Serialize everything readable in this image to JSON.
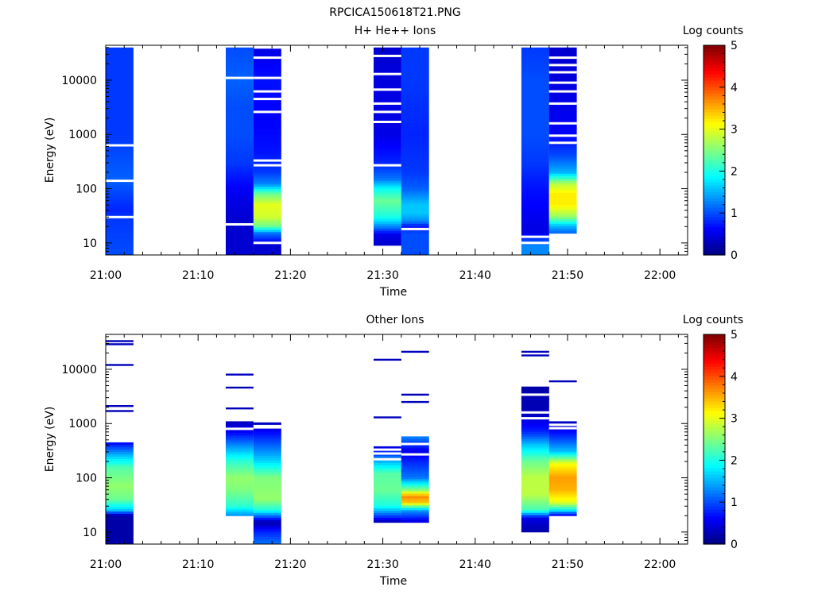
{
  "figure_title": "RPCICA150618T21.PNG",
  "colormap": [
    "#00007f",
    "#0000ff",
    "#007fff",
    "#00ffff",
    "#7fff7f",
    "#ffff00",
    "#ff7f00",
    "#ff0000",
    "#7f0000"
  ],
  "chart_data": [
    {
      "type": "heatmap",
      "title": "H+ He++ Ions",
      "xlabel": "Time",
      "ylabel": "Energy (eV)",
      "x_ticks": [
        "21:00",
        "21:10",
        "21:20",
        "21:30",
        "21:40",
        "21:50",
        "22:00"
      ],
      "y_ticks": [
        "10",
        "100",
        "1000",
        "10000"
      ],
      "colorbar_label": "Log counts",
      "colorbar_ticks": [
        "0",
        "1",
        "2",
        "3",
        "4",
        "5"
      ],
      "y_scale": "log",
      "ylim": [
        6,
        44000
      ],
      "xlim_minutes_after_2100": [
        0,
        63
      ],
      "zlim": [
        0,
        5
      ],
      "sweeps": [
        {
          "start": "21:00",
          "end": "21:03",
          "emin": 6,
          "emax": 40000,
          "profile": [
            [
              6,
              1.0
            ],
            [
              25,
              0.9
            ],
            [
              40,
              0.8
            ],
            [
              150,
              1.1
            ],
            [
              1000,
              0.9
            ],
            [
              10000,
              0.9
            ],
            [
              40000,
              0.9
            ]
          ],
          "gaps": [
            30,
            140,
            630
          ]
        },
        {
          "start": "21:13",
          "end": "21:16",
          "emin": 6,
          "emax": 40000,
          "profile": [
            [
              6,
              0.4
            ],
            [
              20,
              0.4
            ],
            [
              26,
              0.4
            ],
            [
              60,
              0.5
            ],
            [
              100,
              0.6
            ],
            [
              300,
              0.9
            ],
            [
              1000,
              1.0
            ],
            [
              3000,
              1.0
            ],
            [
              10000,
              1.1
            ],
            [
              40000,
              1.0
            ]
          ],
          "gaps": [
            22,
            11000
          ]
        },
        {
          "start": "21:16",
          "end": "21:19",
          "emin": 6,
          "emax": 38000,
          "profile": [
            [
              6,
              0.4
            ],
            [
              9,
              0.4
            ],
            [
              15,
              1.2
            ],
            [
              20,
              2.4
            ],
            [
              30,
              2.9
            ],
            [
              50,
              3.0
            ],
            [
              80,
              2.4
            ],
            [
              120,
              1.3
            ],
            [
              200,
              0.9
            ],
            [
              500,
              0.7
            ],
            [
              2000,
              0.6
            ],
            [
              10000,
              0.7
            ],
            [
              38000,
              0.5
            ]
          ],
          "gaps": [
            10,
            270,
            330,
            2600,
            4500,
            6200,
            11000,
            26000
          ]
        },
        {
          "start": "21:29",
          "end": "21:32",
          "emin": 9,
          "emax": 40000,
          "profile": [
            [
              9,
              0.4
            ],
            [
              14,
              0.5
            ],
            [
              20,
              1.3
            ],
            [
              30,
              2.0
            ],
            [
              60,
              2.4
            ],
            [
              100,
              1.9
            ],
            [
              150,
              1.2
            ],
            [
              300,
              0.8
            ],
            [
              1000,
              0.5
            ],
            [
              5000,
              0.5
            ],
            [
              40000,
              0.4
            ]
          ],
          "gaps": [
            270,
            1700,
            2600,
            3700,
            6700,
            13000,
            28000
          ]
        },
        {
          "start": "21:32",
          "end": "21:35",
          "emin": 6,
          "emax": 40000,
          "profile": [
            [
              6,
              1.0
            ],
            [
              15,
              1.0
            ],
            [
              20,
              0.7
            ],
            [
              25,
              1.3
            ],
            [
              35,
              1.6
            ],
            [
              50,
              1.6
            ],
            [
              100,
              1.1
            ],
            [
              200,
              0.9
            ],
            [
              1000,
              0.8
            ],
            [
              10000,
              0.9
            ],
            [
              40000,
              0.9
            ]
          ],
          "gaps": [
            18
          ]
        },
        {
          "start": "21:45",
          "end": "21:48",
          "emin": 6,
          "emax": 40000,
          "profile": [
            [
              6,
              1.3
            ],
            [
              9,
              1.3
            ],
            [
              15,
              0.5
            ],
            [
              20,
              0.5
            ],
            [
              40,
              0.6
            ],
            [
              100,
              0.7
            ],
            [
              300,
              0.9
            ],
            [
              1000,
              1.0
            ],
            [
              10000,
              1.0
            ],
            [
              40000,
              0.9
            ]
          ],
          "gaps": [
            10,
            13
          ]
        },
        {
          "start": "21:48",
          "end": "21:51",
          "emin": 15,
          "emax": 40000,
          "profile": [
            [
              15,
              1.1
            ],
            [
              20,
              1.5
            ],
            [
              30,
              2.6
            ],
            [
              50,
              3.2
            ],
            [
              80,
              3.2
            ],
            [
              120,
              2.8
            ],
            [
              200,
              1.5
            ],
            [
              400,
              1.0
            ],
            [
              1000,
              0.6
            ],
            [
              5000,
              0.5
            ],
            [
              40000,
              0.4
            ]
          ],
          "gaps": [
            700,
            950,
            1600,
            3700,
            6200,
            9000,
            14000,
            19000,
            26000
          ]
        }
      ]
    },
    {
      "type": "heatmap",
      "title": "Other Ions",
      "xlabel": "Time",
      "ylabel": "Energy (eV)",
      "x_ticks": [
        "21:00",
        "21:10",
        "21:20",
        "21:30",
        "21:40",
        "21:50",
        "22:00"
      ],
      "y_ticks": [
        "10",
        "100",
        "1000",
        "10000"
      ],
      "colorbar_label": "Log counts",
      "colorbar_ticks": [
        "0",
        "1",
        "2",
        "3",
        "4",
        "5"
      ],
      "y_scale": "log",
      "ylim": [
        6,
        44000
      ],
      "xlim_minutes_after_2100": [
        0,
        63
      ],
      "zlim": [
        0,
        5
      ],
      "sweeps": [
        {
          "start": "21:00",
          "end": "21:03",
          "emin": 6,
          "emax": 450,
          "profile": [
            [
              6,
              0.2
            ],
            [
              20,
              0.2
            ],
            [
              25,
              1.6
            ],
            [
              40,
              2.4
            ],
            [
              70,
              2.6
            ],
            [
              150,
              2.3
            ],
            [
              250,
              1.6
            ],
            [
              450,
              0.6
            ]
          ],
          "gaps": [],
          "lines": [
            [
              1700,
              0.3
            ],
            [
              2100,
              0.3
            ],
            [
              12000,
              0.3
            ],
            [
              29000,
              0.3
            ],
            [
              33000,
              0.3
            ]
          ]
        },
        {
          "start": "21:13",
          "end": "21:16",
          "emin": 20,
          "emax": 1100,
          "profile": [
            [
              20,
              1.3
            ],
            [
              30,
              2.1
            ],
            [
              60,
              2.5
            ],
            [
              100,
              2.6
            ],
            [
              200,
              2.1
            ],
            [
              400,
              1.3
            ],
            [
              700,
              0.6
            ],
            [
              1100,
              0.3
            ]
          ],
          "gaps": [
            800
          ],
          "lines": [
            [
              1900,
              0.3
            ],
            [
              4600,
              0.3
            ],
            [
              8000,
              0.3
            ]
          ]
        },
        {
          "start": "21:16",
          "end": "21:19",
          "emin": 6,
          "emax": 1050,
          "profile": [
            [
              6,
              1.2
            ],
            [
              10,
              0.8
            ],
            [
              15,
              0.2
            ],
            [
              25,
              2.0
            ],
            [
              40,
              2.6
            ],
            [
              100,
              2.5
            ],
            [
              200,
              1.7
            ],
            [
              400,
              1.1
            ],
            [
              1050,
              0.3
            ]
          ],
          "gaps": [
            850,
            900
          ]
        },
        {
          "start": "21:29",
          "end": "21:32",
          "emin": 15,
          "emax": 380,
          "profile": [
            [
              15,
              0.2
            ],
            [
              20,
              1.0
            ],
            [
              30,
              2.0
            ],
            [
              60,
              2.4
            ],
            [
              120,
              2.3
            ],
            [
              200,
              1.5
            ],
            [
              380,
              0.4
            ]
          ],
          "gaps": [
            220,
            280,
            330
          ],
          "lines": [
            [
              1300,
              0.3
            ],
            [
              15000,
              0.3
            ]
          ]
        },
        {
          "start": "21:32",
          "end": "21:35",
          "emin": 15,
          "emax": 580,
          "profile": [
            [
              15,
              0.4
            ],
            [
              25,
              1.4
            ],
            [
              35,
              3.4
            ],
            [
              45,
              3.7
            ],
            [
              60,
              2.5
            ],
            [
              100,
              1.2
            ],
            [
              200,
              0.8
            ],
            [
              300,
              0.5
            ],
            [
              580,
              1.3
            ]
          ],
          "gaps": [
            270,
            420
          ],
          "lines": [
            [
              2500,
              0.3
            ],
            [
              3400,
              0.3
            ],
            [
              21000,
              0.3
            ]
          ]
        },
        {
          "start": "21:45",
          "end": "21:48",
          "emin": 10,
          "emax": 4800,
          "profile": [
            [
              10,
              0.2
            ],
            [
              18,
              0.5
            ],
            [
              25,
              2.2
            ],
            [
              50,
              2.8
            ],
            [
              100,
              2.8
            ],
            [
              200,
              2.4
            ],
            [
              400,
              1.6
            ],
            [
              700,
              0.8
            ],
            [
              1500,
              0.3
            ],
            [
              4800,
              0.2
            ]
          ],
          "gaps": [
            1250,
            1600,
            3400
          ],
          "lines": [
            [
              2800,
              0.3
            ],
            [
              18000,
              0.3
            ],
            [
              21000,
              0.3
            ]
          ]
        },
        {
          "start": "21:48",
          "end": "21:51",
          "emin": 20,
          "emax": 1100,
          "profile": [
            [
              20,
              0.4
            ],
            [
              25,
              1.8
            ],
            [
              35,
              3.0
            ],
            [
              60,
              3.5
            ],
            [
              100,
              3.6
            ],
            [
              180,
              3.1
            ],
            [
              300,
              1.6
            ],
            [
              600,
              0.8
            ],
            [
              1100,
              0.3
            ]
          ],
          "gaps": [
            820,
            950
          ],
          "lines": [
            [
              6000,
              0.3
            ]
          ]
        }
      ]
    }
  ]
}
